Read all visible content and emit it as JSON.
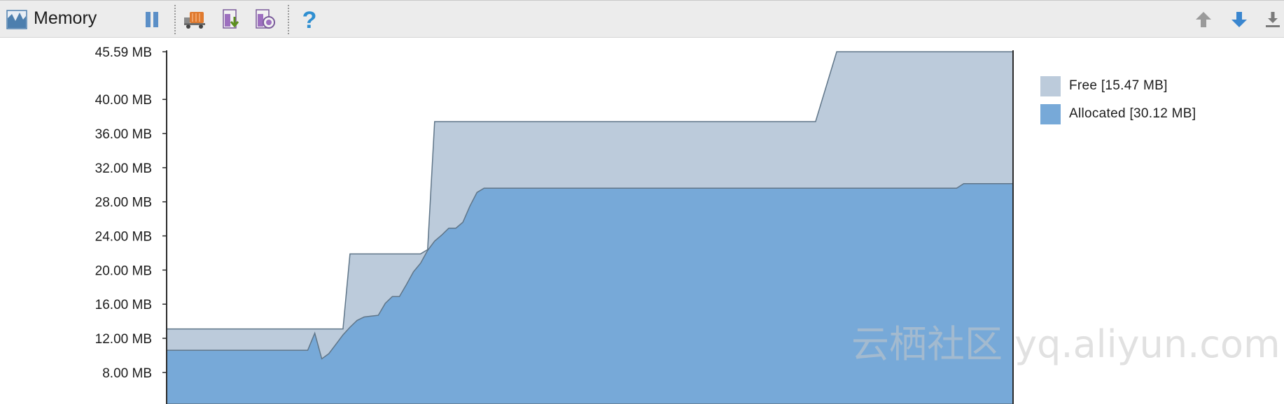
{
  "toolbar": {
    "title": "Memory",
    "icons": [
      "memory-chart-icon",
      "pause-icon",
      "gc-truck-icon",
      "dump-heap-icon",
      "allocation-tracking-icon",
      "help-icon",
      "scroll-up-icon",
      "scroll-down-icon",
      "scroll-to-end-icon"
    ]
  },
  "colors": {
    "free": "#bccbdb",
    "allocated": "#77a9d8",
    "outline": "#5f7588"
  },
  "legend": {
    "free_label": "Free [15.47 MB]",
    "allocated_label": "Allocated [30.12 MB]"
  },
  "watermark": "云栖社区 yq.aliyun.com",
  "chart_data": {
    "type": "area",
    "stacked": true,
    "y_unit": "MB",
    "ylim": [
      4.3,
      45.59
    ],
    "yticks": [
      8,
      12,
      16,
      20,
      24,
      28,
      32,
      36,
      40,
      45.59
    ],
    "ytick_labels": [
      "8.00 MB",
      "12.00 MB",
      "16.00 MB",
      "20.00 MB",
      "24.00 MB",
      "28.00 MB",
      "32.00 MB",
      "36.00 MB",
      "40.00 MB",
      "45.59 MB"
    ],
    "x": [
      0,
      10,
      20,
      21,
      22,
      23,
      24,
      25,
      26,
      27,
      28,
      29,
      30,
      31,
      32,
      33,
      34,
      35,
      36,
      37,
      38,
      39,
      40,
      41,
      42,
      43,
      44,
      45,
      46,
      47,
      48,
      49,
      50,
      51,
      52,
      53,
      54,
      55,
      56,
      60,
      65,
      70,
      73,
      77,
      80,
      86,
      87,
      88,
      92,
      95,
      98,
      99,
      102,
      110,
      112,
      113,
      120
    ],
    "series": [
      {
        "name": "Allocated",
        "values": [
          10.6,
          10.6,
          10.6,
          12.6,
          9.6,
          10.2,
          11.3,
          12.4,
          13.3,
          14.1,
          14.5,
          14.6,
          14.7,
          16.1,
          16.9,
          16.9,
          18.3,
          19.8,
          20.8,
          22.3,
          23.4,
          24.1,
          24.9,
          24.9,
          25.6,
          27.5,
          29.1,
          29.6,
          29.6,
          29.6,
          29.6,
          29.6,
          29.6,
          29.6,
          29.6,
          29.6,
          29.6,
          29.6,
          29.6,
          29.6,
          29.6,
          29.6,
          29.6,
          29.6,
          29.6,
          29.6,
          29.6,
          29.6,
          29.6,
          29.6,
          29.6,
          29.6,
          29.6,
          29.6,
          29.6,
          30.12,
          30.12
        ]
      },
      {
        "name": "Free",
        "total_values": [
          13.1,
          13.1,
          13.1,
          13.1,
          13.1,
          13.1,
          13.1,
          13.1,
          21.9,
          21.9,
          21.9,
          21.9,
          21.9,
          21.9,
          21.9,
          21.9,
          21.9,
          21.9,
          21.9,
          22.4,
          37.4,
          37.4,
          37.4,
          37.4,
          37.4,
          37.4,
          37.4,
          37.4,
          37.4,
          37.4,
          37.4,
          37.4,
          37.4,
          37.4,
          37.4,
          37.4,
          37.4,
          37.4,
          37.4,
          37.4,
          37.4,
          37.4,
          37.4,
          37.4,
          37.4,
          37.4,
          37.4,
          37.4,
          37.4,
          45.59,
          45.59,
          45.59,
          45.59,
          45.59,
          45.59,
          45.59,
          45.59
        ]
      }
    ]
  }
}
